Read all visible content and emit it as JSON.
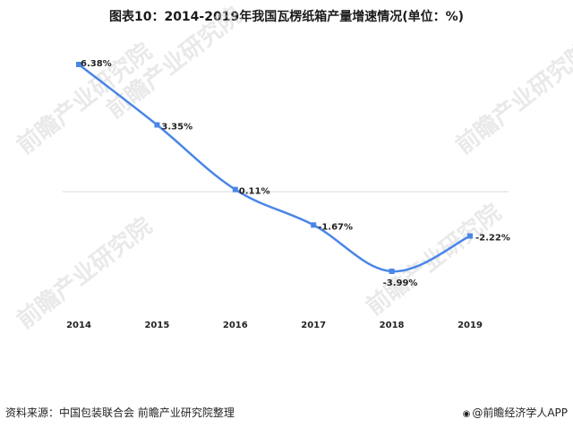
{
  "title": "图表10：2014-2019年我国瓦楞纸箱产量增速情况(单位：%)",
  "source": "资料来源：中国包装联合会 前瞻产业研究院整理",
  "brand": "@前瞻经济学人APP",
  "watermark": "前瞻产业研究院",
  "colors": {
    "line": "#4a86e8",
    "zero": "#d9d9d9",
    "label": "#222222"
  },
  "chart_data": {
    "type": "line",
    "x": [
      "2014",
      "2015",
      "2016",
      "2017",
      "2018",
      "2019"
    ],
    "series": [
      {
        "values": [
          6.38,
          3.35,
          0.11,
          -1.67,
          -3.99,
          -2.22
        ]
      }
    ],
    "data_labels": [
      "6.38%",
      "3.35%",
      "0.11%",
      "-1.67%",
      "-3.99%",
      "-2.22%"
    ],
    "smooth": true,
    "grid": false,
    "legend": "none",
    "ylim": [
      -5.5,
      7.2
    ]
  }
}
